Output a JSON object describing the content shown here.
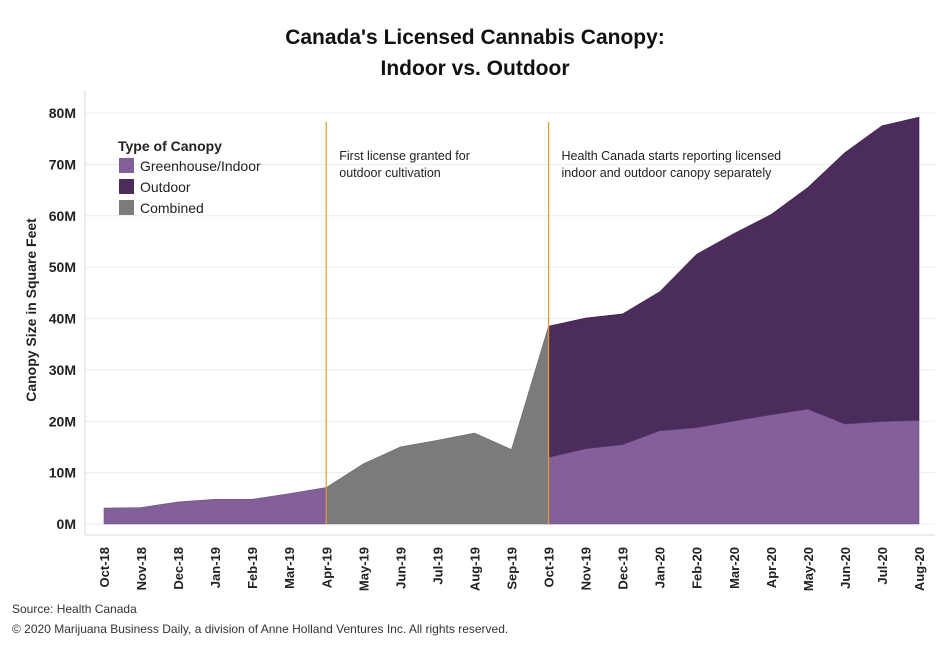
{
  "chart_data": {
    "type": "area",
    "title_line1": "Canada's Licensed Cannabis Canopy:",
    "title_line2": "Indoor vs. Outdoor",
    "ylabel": "Canopy Size in Square Feet",
    "ylim": [
      0,
      80000000
    ],
    "yticks": [
      {
        "value": 0,
        "label": "0M"
      },
      {
        "value": 10000000,
        "label": "10M"
      },
      {
        "value": 20000000,
        "label": "20M"
      },
      {
        "value": 30000000,
        "label": "30M"
      },
      {
        "value": 40000000,
        "label": "40M"
      },
      {
        "value": 50000000,
        "label": "50M"
      },
      {
        "value": 60000000,
        "label": "60M"
      },
      {
        "value": 70000000,
        "label": "70M"
      },
      {
        "value": 80000000,
        "label": "80M"
      }
    ],
    "grid": true,
    "categories": [
      "Oct-18",
      "Nov-18",
      "Dec-18",
      "Jan-19",
      "Feb-19",
      "Mar-19",
      "Apr-19",
      "May-19",
      "Jun-19",
      "Jul-19",
      "Aug-19",
      "Sep-19",
      "Oct-19",
      "Nov-19",
      "Dec-19",
      "Jan-20",
      "Feb-20",
      "Mar-20",
      "Apr-20",
      "May-20",
      "Jun-20",
      "Jul-20",
      "Aug-20"
    ],
    "legend": {
      "title": "Type of Canopy",
      "position": "top-left",
      "items": [
        {
          "name": "Greenhouse/Indoor",
          "color": "#84609b"
        },
        {
          "name": "Outdoor",
          "color": "#4b2c5c"
        },
        {
          "name": "Combined",
          "color": "#7b7b7b"
        }
      ]
    },
    "series": [
      {
        "name": "Greenhouse/Indoor",
        "color": "#84609b",
        "stack": "indoor_outdoor",
        "values": [
          3100000,
          3200000,
          4300000,
          4800000,
          4800000,
          5900000,
          7100000,
          null,
          null,
          null,
          null,
          null,
          12900000,
          14600000,
          15400000,
          18100000,
          18700000,
          20000000,
          21200000,
          22300000,
          19400000,
          19900000,
          20100000
        ]
      },
      {
        "name": "Outdoor",
        "color": "#4b2c5c",
        "stack": "indoor_outdoor",
        "values": [
          null,
          null,
          null,
          null,
          null,
          null,
          null,
          null,
          null,
          null,
          null,
          null,
          25600000,
          25500000,
          25500000,
          27100000,
          33800000,
          36500000,
          39000000,
          43200000,
          52900000,
          57600000,
          59100000
        ]
      },
      {
        "name": "Combined",
        "color": "#7b7b7b",
        "values": [
          null,
          null,
          null,
          null,
          null,
          null,
          7100000,
          11700000,
          15000000,
          16300000,
          17700000,
          14500000,
          38500000,
          null,
          null,
          null,
          null,
          null,
          null,
          null,
          null,
          null,
          null
        ]
      }
    ],
    "annotations": [
      {
        "category": "Apr-19",
        "color": "#e59d2a",
        "lines": [
          "First license granted for",
          "outdoor cultivation"
        ]
      },
      {
        "category": "Oct-19",
        "color": "#e59d2a",
        "lines": [
          "Health Canada starts reporting licensed",
          "indoor and outdoor canopy separately"
        ]
      }
    ]
  },
  "footer": {
    "source": "Source: Health Canada",
    "copyright": "© 2020 Marijuana Business Daily, a division of Anne Holland Ventures Inc. All rights reserved."
  }
}
